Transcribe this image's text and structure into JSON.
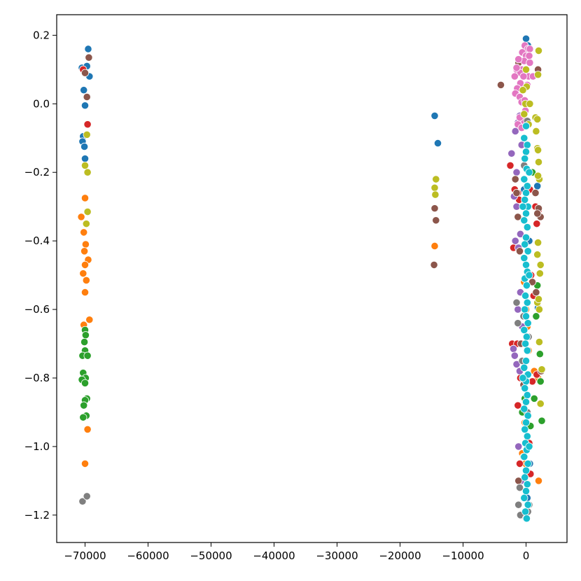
{
  "chart_data": {
    "type": "scatter",
    "title": "",
    "xlabel": "",
    "ylabel": "",
    "xlim": [
      -74500,
      6500
    ],
    "ylim": [
      -1.28,
      0.26
    ],
    "x_ticks": [
      {
        "value": -70000,
        "label": "−70000"
      },
      {
        "value": -60000,
        "label": "−60000"
      },
      {
        "value": -50000,
        "label": "−50000"
      },
      {
        "value": -40000,
        "label": "−40000"
      },
      {
        "value": -30000,
        "label": "−30000"
      },
      {
        "value": -20000,
        "label": "−20000"
      },
      {
        "value": -10000,
        "label": "−10000"
      },
      {
        "value": 0,
        "label": "0"
      }
    ],
    "y_ticks": [
      {
        "value": 0.2,
        "label": "0.2"
      },
      {
        "value": 0.0,
        "label": "0.0"
      },
      {
        "value": -0.2,
        "label": "−0.2"
      },
      {
        "value": -0.4,
        "label": "−0.4"
      },
      {
        "value": -0.6,
        "label": "−0.6"
      },
      {
        "value": -0.8,
        "label": "−0.8"
      },
      {
        "value": -1.0,
        "label": "−1.0"
      },
      {
        "value": -1.2,
        "label": "−1.2"
      }
    ],
    "grid": false,
    "legend": false,
    "series": [
      {
        "color": "#1f77b4",
        "points": [
          [
            -69500,
            0.16
          ],
          [
            -70500,
            0.105
          ],
          [
            -69700,
            0.11
          ],
          [
            -69300,
            0.08
          ],
          [
            -70200,
            0.04
          ],
          [
            -70000,
            -0.005
          ],
          [
            -70300,
            -0.095
          ],
          [
            -70400,
            -0.11
          ],
          [
            -70100,
            -0.125
          ],
          [
            -70000,
            -0.16
          ],
          [
            -14500,
            -0.035
          ],
          [
            -14000,
            -0.115
          ],
          [
            0,
            0.19
          ],
          [
            300,
            0.17
          ],
          [
            -200,
            0.15
          ],
          [
            200,
            -0.06
          ],
          [
            -300,
            -0.25
          ],
          [
            500,
            -0.4
          ],
          [
            1800,
            -0.24
          ],
          [
            1900,
            -0.595
          ],
          [
            -400,
            -0.9
          ],
          [
            600,
            -1.05
          ],
          [
            200,
            -1.15
          ]
        ]
      },
      {
        "color": "#ff7f0e",
        "points": [
          [
            -70000,
            -0.275
          ],
          [
            -70600,
            -0.33
          ],
          [
            -70200,
            -0.375
          ],
          [
            -69900,
            -0.41
          ],
          [
            -70100,
            -0.43
          ],
          [
            -69500,
            -0.455
          ],
          [
            -70000,
            -0.47
          ],
          [
            -70300,
            -0.495
          ],
          [
            -69800,
            -0.515
          ],
          [
            -70000,
            -0.55
          ],
          [
            -69300,
            -0.63
          ],
          [
            -70200,
            -0.645
          ],
          [
            -69600,
            -0.95
          ],
          [
            -70000,
            -1.05
          ],
          [
            -14500,
            -0.415
          ],
          [
            -300,
            -0.52
          ],
          [
            0,
            -0.6
          ],
          [
            200,
            -0.65
          ],
          [
            400,
            -0.72
          ],
          [
            -200,
            -0.93
          ],
          [
            -600,
            -1.02
          ],
          [
            1300,
            -0.78
          ],
          [
            1900,
            -0.8
          ],
          [
            2000,
            -1.1
          ],
          [
            -100,
            -1.05
          ]
        ]
      },
      {
        "color": "#2ca02c",
        "points": [
          [
            -70000,
            -0.66
          ],
          [
            -69900,
            -0.675
          ],
          [
            -70100,
            -0.695
          ],
          [
            -70000,
            -0.72
          ],
          [
            -70400,
            -0.735
          ],
          [
            -69600,
            -0.735
          ],
          [
            -70300,
            -0.785
          ],
          [
            -69900,
            -0.8
          ],
          [
            -70500,
            -0.805
          ],
          [
            -70000,
            -0.815
          ],
          [
            -69700,
            -0.86
          ],
          [
            -70000,
            -0.865
          ],
          [
            -70200,
            -0.88
          ],
          [
            -69800,
            -0.91
          ],
          [
            -70300,
            -0.915
          ],
          [
            1000,
            -0.2
          ],
          [
            1600,
            -0.62
          ],
          [
            2200,
            -0.73
          ],
          [
            2300,
            -0.81
          ],
          [
            1300,
            -0.86
          ],
          [
            -200,
            -0.86
          ],
          [
            -600,
            -0.9
          ],
          [
            700,
            -0.94
          ],
          [
            2500,
            -0.925
          ],
          [
            -400,
            -1.03
          ],
          [
            1800,
            -0.53
          ]
        ]
      },
      {
        "color": "#d62728",
        "points": [
          [
            -70300,
            0.1
          ],
          [
            -69600,
            -0.06
          ],
          [
            -2500,
            -0.18
          ],
          [
            -1800,
            -0.25
          ],
          [
            -1300,
            -0.26
          ],
          [
            -1100,
            -0.28
          ],
          [
            600,
            -0.25
          ],
          [
            1500,
            -0.3
          ],
          [
            2000,
            -0.31
          ],
          [
            2200,
            -0.33
          ],
          [
            1700,
            -0.35
          ],
          [
            -2000,
            -0.42
          ],
          [
            800,
            -0.5
          ],
          [
            1200,
            -0.56
          ],
          [
            -2200,
            -0.7
          ],
          [
            -1400,
            -0.7
          ],
          [
            -900,
            -0.8
          ],
          [
            1000,
            -0.81
          ],
          [
            -1300,
            -0.88
          ],
          [
            500,
            -0.99
          ],
          [
            -1000,
            -1.05
          ],
          [
            700,
            -1.08
          ],
          [
            1700,
            -0.79
          ]
        ]
      },
      {
        "color": "#9467bd",
        "points": [
          [
            -2300,
            -0.145
          ],
          [
            -1700,
            -0.08
          ],
          [
            -1300,
            -0.055
          ],
          [
            -1000,
            -0.035
          ],
          [
            -1500,
            -0.2
          ],
          [
            -1900,
            -0.27
          ],
          [
            -1500,
            -0.3
          ],
          [
            -1700,
            -0.4
          ],
          [
            -1200,
            -0.42
          ],
          [
            -900,
            -0.38
          ],
          [
            -2000,
            -0.715
          ],
          [
            -1800,
            -0.735
          ],
          [
            -1500,
            -0.76
          ],
          [
            -1300,
            -0.6
          ],
          [
            -1000,
            -0.78
          ],
          [
            -1200,
            -1.0
          ],
          [
            -800,
            -1.1
          ],
          [
            -900,
            -0.55
          ],
          [
            -700,
            -0.12
          ],
          [
            -600,
            -0.65
          ]
        ]
      },
      {
        "color": "#8c564b",
        "points": [
          [
            -69400,
            0.135
          ],
          [
            -70000,
            0.09
          ],
          [
            -69700,
            0.02
          ],
          [
            -14500,
            -0.305
          ],
          [
            -14300,
            -0.34
          ],
          [
            -14600,
            -0.47
          ],
          [
            -4000,
            0.055
          ],
          [
            -1200,
            0.12
          ],
          [
            1900,
            0.1
          ],
          [
            -1700,
            -0.22
          ],
          [
            -1500,
            -0.26
          ],
          [
            1500,
            -0.26
          ],
          [
            2000,
            -0.305
          ],
          [
            2300,
            -0.33
          ],
          [
            1800,
            -0.32
          ],
          [
            -1300,
            -0.33
          ],
          [
            -800,
            -0.7
          ],
          [
            -400,
            -0.82
          ],
          [
            1000,
            -0.52
          ],
          [
            1600,
            -0.55
          ],
          [
            2400,
            -0.78
          ],
          [
            -1200,
            -1.1
          ],
          [
            -700,
            -1.2
          ],
          [
            -1000,
            -0.43
          ]
        ]
      },
      {
        "color": "#e377c2",
        "points": [
          [
            -200,
            0.17
          ],
          [
            300,
            0.16
          ],
          [
            600,
            0.16
          ],
          [
            -600,
            0.15
          ],
          [
            0,
            0.14
          ],
          [
            -300,
            0.125
          ],
          [
            600,
            0.12
          ],
          [
            -700,
            0.1
          ],
          [
            100,
            0.1
          ],
          [
            -1500,
            0.1
          ],
          [
            -900,
            0.09
          ],
          [
            400,
            0.08
          ],
          [
            -400,
            0.08
          ],
          [
            -900,
            0.06
          ],
          [
            200,
            0.055
          ],
          [
            -1400,
            0.045
          ],
          [
            -1700,
            0.03
          ],
          [
            -1000,
            0.02
          ],
          [
            -700,
            0.005
          ],
          [
            -200,
            0.01
          ],
          [
            -1500,
            0.105
          ],
          [
            -1200,
            0.13
          ],
          [
            1100,
            0.08
          ],
          [
            -100,
            -0.02
          ],
          [
            -300,
            -0.05
          ],
          [
            -1300,
            -0.06
          ],
          [
            -700,
            -0.07
          ],
          [
            -1000,
            -0.04
          ],
          [
            -500,
            0.04
          ],
          [
            -1800,
            0.08
          ],
          [
            500,
            0.14
          ]
        ]
      },
      {
        "color": "#7f7f7f",
        "points": [
          [
            -70400,
            -1.16
          ],
          [
            -69700,
            -1.145
          ],
          [
            -1500,
            -0.58
          ],
          [
            -1300,
            -0.64
          ],
          [
            -1000,
            -1.12
          ],
          [
            -1200,
            -1.17
          ],
          [
            -900,
            -1.2
          ],
          [
            0,
            -1.21
          ],
          [
            300,
            -1.19
          ],
          [
            500,
            -1.17
          ],
          [
            -400,
            -0.62
          ],
          [
            400,
            -0.68
          ],
          [
            -300,
            -0.18
          ],
          [
            200,
            -0.05
          ],
          [
            -600,
            -0.75
          ],
          [
            200,
            -0.9
          ]
        ]
      },
      {
        "color": "#bcbd22",
        "points": [
          [
            -69700,
            -0.09
          ],
          [
            -70000,
            -0.18
          ],
          [
            -69600,
            -0.2
          ],
          [
            -69600,
            -0.315
          ],
          [
            -69800,
            -0.35
          ],
          [
            -14300,
            -0.22
          ],
          [
            -14500,
            -0.245
          ],
          [
            -14400,
            -0.265
          ],
          [
            2000,
            0.155
          ],
          [
            1900,
            0.085
          ],
          [
            0,
            0.1
          ],
          [
            100,
            0.05
          ],
          [
            -100,
            0.0
          ],
          [
            1500,
            -0.04
          ],
          [
            1800,
            -0.045
          ],
          [
            1600,
            -0.08
          ],
          [
            1800,
            -0.13
          ],
          [
            1900,
            -0.135
          ],
          [
            2000,
            -0.17
          ],
          [
            2100,
            -0.22
          ],
          [
            1900,
            -0.21
          ],
          [
            -300,
            -0.03
          ],
          [
            400,
            -0.06
          ],
          [
            1900,
            -0.405
          ],
          [
            2300,
            -0.47
          ],
          [
            2200,
            -0.495
          ],
          [
            1800,
            -0.44
          ],
          [
            1800,
            -0.58
          ],
          [
            2000,
            -0.57
          ],
          [
            2100,
            -0.6
          ],
          [
            2100,
            -0.695
          ],
          [
            2500,
            -0.775
          ],
          [
            2300,
            -0.875
          ],
          [
            600,
            0.0
          ],
          [
            -500,
            0.04
          ]
        ]
      },
      {
        "color": "#17becf",
        "points": [
          [
            0,
            -0.065
          ],
          [
            -300,
            -0.1
          ],
          [
            200,
            -0.12
          ],
          [
            0,
            -0.14
          ],
          [
            -200,
            -0.16
          ],
          [
            100,
            -0.19
          ],
          [
            -300,
            -0.22
          ],
          [
            200,
            -0.24
          ],
          [
            0,
            -0.26
          ],
          [
            -200,
            -0.28
          ],
          [
            300,
            -0.3
          ],
          [
            0,
            -0.32
          ],
          [
            -300,
            -0.34
          ],
          [
            200,
            -0.36
          ],
          [
            0,
            -0.39
          ],
          [
            -200,
            -0.41
          ],
          [
            300,
            -0.43
          ],
          [
            -300,
            -0.45
          ],
          [
            0,
            -0.47
          ],
          [
            200,
            -0.49
          ],
          [
            -200,
            -0.51
          ],
          [
            100,
            -0.53
          ],
          [
            -100,
            -0.56
          ],
          [
            200,
            -0.58
          ],
          [
            -200,
            -0.6
          ],
          [
            0,
            -0.62
          ],
          [
            300,
            -0.64
          ],
          [
            -300,
            -0.66
          ],
          [
            100,
            -0.68
          ],
          [
            -100,
            -0.7
          ],
          [
            200,
            -0.72
          ],
          [
            0,
            -0.75
          ],
          [
            -300,
            -0.77
          ],
          [
            300,
            -0.79
          ],
          [
            0,
            -0.81
          ],
          [
            -200,
            -0.83
          ],
          [
            200,
            -0.85
          ],
          [
            0,
            -0.87
          ],
          [
            -300,
            -0.89
          ],
          [
            300,
            -0.91
          ],
          [
            0,
            -0.93
          ],
          [
            -200,
            -0.95
          ],
          [
            200,
            -0.97
          ],
          [
            -100,
            -0.99
          ],
          [
            100,
            -1.01
          ],
          [
            -300,
            -1.03
          ],
          [
            300,
            -1.05
          ],
          [
            0,
            -1.07
          ],
          [
            -200,
            -1.09
          ],
          [
            200,
            -1.11
          ],
          [
            0,
            -1.13
          ],
          [
            -300,
            -1.15
          ],
          [
            300,
            -1.17
          ],
          [
            -100,
            -1.19
          ],
          [
            100,
            -1.21
          ],
          [
            500,
            -0.2
          ],
          [
            -500,
            -0.3
          ],
          [
            500,
            -0.5
          ],
          [
            -500,
            -0.8
          ],
          [
            500,
            -1.0
          ]
        ]
      }
    ]
  }
}
